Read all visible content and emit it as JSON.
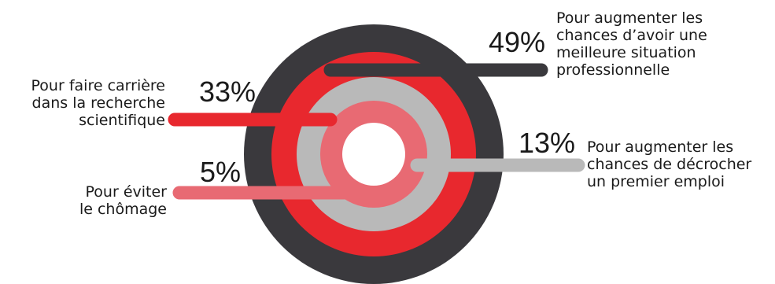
{
  "chart_data": {
    "type": "radial-bar",
    "series": [
      {
        "value": 49,
        "value_label": "49%",
        "label_lines": [
          "Pour augmenter les",
          "chances d’avoir une",
          "meilleure situation",
          "professionnelle"
        ],
        "color": "#3a393d"
      },
      {
        "value": 33,
        "value_label": "33%",
        "label_lines": [
          "Pour faire carrière",
          "dans la recherche",
          "scientifique"
        ],
        "color": "#e8282e"
      },
      {
        "value": 13,
        "value_label": "13%",
        "label_lines": [
          "Pour augmenter les",
          "chances de décrocher",
          "un premier emploi"
        ],
        "color": "#b9b9b9"
      },
      {
        "value": 5,
        "value_label": "5%",
        "label_lines": [
          "Pour éviter",
          "le chômage"
        ],
        "color": "#e86a73"
      }
    ]
  }
}
